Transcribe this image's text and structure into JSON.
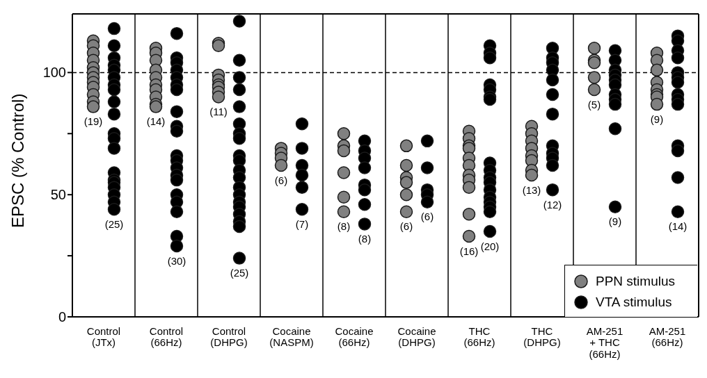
{
  "chart_data": {
    "type": "scatter",
    "ylabel": "EPSC (% Control)",
    "categories": [
      "Control\n(JTx)",
      "Control\n(66Hz)",
      "Control\n(DHPG)",
      "Cocaine\n(NASPM)",
      "Cocaine\n(66Hz)",
      "Cocaine\n(DHPG)",
      "THC\n(66Hz)",
      "THC\n(DHPG)",
      "AM-251\n+ THC\n(66Hz)",
      "AM-251\n(66Hz)"
    ],
    "ylim": [
      0,
      124
    ],
    "yticks": [
      0,
      {
        "value": 25,
        "label": null
      },
      50,
      {
        "value": 75,
        "label": null
      },
      100
    ],
    "grid": "x",
    "legend": "bottom right",
    "marker": "circle",
    "ref_lines": [
      {
        "axis": "y",
        "value": 100,
        "line_style": "dashed",
        "color": "#000000"
      }
    ],
    "series": [
      {
        "name": "PPN stimulus",
        "color": "#808080",
        "x": [
          "Control\n(JTx)",
          "Control\n(JTx)",
          "Control\n(JTx)",
          "Control\n(JTx)",
          "Control\n(JTx)",
          "Control\n(JTx)",
          "Control\n(JTx)",
          "Control\n(JTx)",
          "Control\n(JTx)",
          "Control\n(JTx)",
          "Control\n(JTx)",
          "Control\n(JTx)",
          "Control\n(66Hz)",
          "Control\n(66Hz)",
          "Control\n(66Hz)",
          "Control\n(66Hz)",
          "Control\n(66Hz)",
          "Control\n(66Hz)",
          "Control\n(66Hz)",
          "Control\n(66Hz)",
          "Control\n(66Hz)",
          "Control\n(66Hz)",
          "Control\n(DHPG)",
          "Control\n(DHPG)",
          "Control\n(DHPG)",
          "Control\n(DHPG)",
          "Control\n(DHPG)",
          "Control\n(DHPG)",
          "Control\n(DHPG)",
          "Control\n(DHPG)",
          "Cocaine\n(NASPM)",
          "Cocaine\n(NASPM)",
          "Cocaine\n(NASPM)",
          "Cocaine\n(NASPM)",
          "Cocaine\n(66Hz)",
          "Cocaine\n(66Hz)",
          "Cocaine\n(66Hz)",
          "Cocaine\n(66Hz)",
          "Cocaine\n(66Hz)",
          "Cocaine\n(66Hz)",
          "Cocaine\n(DHPG)",
          "Cocaine\n(DHPG)",
          "Cocaine\n(DHPG)",
          "Cocaine\n(DHPG)",
          "Cocaine\n(DHPG)",
          "Cocaine\n(DHPG)",
          "THC\n(66Hz)",
          "THC\n(66Hz)",
          "THC\n(66Hz)",
          "THC\n(66Hz)",
          "THC\n(66Hz)",
          "THC\n(66Hz)",
          "THC\n(66Hz)",
          "THC\n(66Hz)",
          "THC\n(66Hz)",
          "THC\n(66Hz)",
          "THC\n(66Hz)",
          "THC\n(DHPG)",
          "THC\n(DHPG)",
          "THC\n(DHPG)",
          "THC\n(DHPG)",
          "THC\n(DHPG)",
          "THC\n(DHPG)",
          "THC\n(DHPG)",
          "THC\n(DHPG)",
          "AM-251\n+ THC\n(66Hz)",
          "AM-251\n+ THC\n(66Hz)",
          "AM-251\n+ THC\n(66Hz)",
          "AM-251\n+ THC\n(66Hz)",
          "AM-251\n+ THC\n(66Hz)",
          "AM-251\n(66Hz)",
          "AM-251\n(66Hz)",
          "AM-251\n(66Hz)",
          "AM-251\n(66Hz)",
          "AM-251\n(66Hz)",
          "AM-251\n(66Hz)",
          "AM-251\n(66Hz)",
          "AM-251\n(66Hz)"
        ],
        "values": [
          113,
          111,
          108,
          105,
          102,
          100,
          98,
          96,
          94,
          91,
          88,
          86,
          110,
          108,
          105,
          101,
          98,
          95,
          93,
          90,
          87,
          86,
          112,
          111,
          99,
          97,
          95,
          94,
          92,
          90,
          69,
          67,
          65,
          62,
          75,
          70,
          68,
          59,
          49,
          43,
          70,
          62,
          57,
          55,
          50,
          43,
          76,
          73,
          70,
          69,
          65,
          62,
          58,
          56,
          53,
          42,
          33,
          78,
          75,
          72,
          69,
          66,
          64,
          60,
          58,
          110,
          105,
          104,
          98,
          93,
          108,
          105,
          101,
          96,
          93,
          91,
          90,
          87
        ]
      },
      {
        "name": "VTA stimulus",
        "color": "#000000",
        "x": [
          "Control\n(JTx)",
          "Control\n(JTx)",
          "Control\n(JTx)",
          "Control\n(JTx)",
          "Control\n(JTx)",
          "Control\n(JTx)",
          "Control\n(JTx)",
          "Control\n(JTx)",
          "Control\n(JTx)",
          "Control\n(JTx)",
          "Control\n(JTx)",
          "Control\n(JTx)",
          "Control\n(JTx)",
          "Control\n(JTx)",
          "Control\n(JTx)",
          "Control\n(JTx)",
          "Control\n(JTx)",
          "Control\n(JTx)",
          "Control\n(JTx)",
          "Control\n(JTx)",
          "Control\n(66Hz)",
          "Control\n(66Hz)",
          "Control\n(66Hz)",
          "Control\n(66Hz)",
          "Control\n(66Hz)",
          "Control\n(66Hz)",
          "Control\n(66Hz)",
          "Control\n(66Hz)",
          "Control\n(66Hz)",
          "Control\n(66Hz)",
          "Control\n(66Hz)",
          "Control\n(66Hz)",
          "Control\n(66Hz)",
          "Control\n(66Hz)",
          "Control\n(66Hz)",
          "Control\n(66Hz)",
          "Control\n(66Hz)",
          "Control\n(66Hz)",
          "Control\n(66Hz)",
          "Control\n(66Hz)",
          "Control\n(DHPG)",
          "Control\n(DHPG)",
          "Control\n(DHPG)",
          "Control\n(DHPG)",
          "Control\n(DHPG)",
          "Control\n(DHPG)",
          "Control\n(DHPG)",
          "Control\n(DHPG)",
          "Control\n(DHPG)",
          "Control\n(DHPG)",
          "Control\n(DHPG)",
          "Control\n(DHPG)",
          "Control\n(DHPG)",
          "Control\n(DHPG)",
          "Control\n(DHPG)",
          "Control\n(DHPG)",
          "Control\n(DHPG)",
          "Control\n(DHPG)",
          "Control\n(DHPG)",
          "Control\n(DHPG)",
          "Cocaine\n(NASPM)",
          "Cocaine\n(NASPM)",
          "Cocaine\n(NASPM)",
          "Cocaine\n(NASPM)",
          "Cocaine\n(NASPM)",
          "Cocaine\n(NASPM)",
          "Cocaine\n(66Hz)",
          "Cocaine\n(66Hz)",
          "Cocaine\n(66Hz)",
          "Cocaine\n(66Hz)",
          "Cocaine\n(66Hz)",
          "Cocaine\n(66Hz)",
          "Cocaine\n(66Hz)",
          "Cocaine\n(66Hz)",
          "Cocaine\n(DHPG)",
          "Cocaine\n(DHPG)",
          "Cocaine\n(DHPG)",
          "Cocaine\n(DHPG)",
          "Cocaine\n(DHPG)",
          "THC\n(66Hz)",
          "THC\n(66Hz)",
          "THC\n(66Hz)",
          "THC\n(66Hz)",
          "THC\n(66Hz)",
          "THC\n(66Hz)",
          "THC\n(66Hz)",
          "THC\n(66Hz)",
          "THC\n(66Hz)",
          "THC\n(66Hz)",
          "THC\n(66Hz)",
          "THC\n(66Hz)",
          "THC\n(66Hz)",
          "THC\n(66Hz)",
          "THC\n(66Hz)",
          "THC\n(66Hz)",
          "THC\n(66Hz)",
          "THC\n(DHPG)",
          "THC\n(DHPG)",
          "THC\n(DHPG)",
          "THC\n(DHPG)",
          "THC\n(DHPG)",
          "THC\n(DHPG)",
          "THC\n(DHPG)",
          "THC\n(DHPG)",
          "THC\n(DHPG)",
          "THC\n(DHPG)",
          "THC\n(DHPG)",
          "THC\n(DHPG)",
          "AM-251\n+ THC\n(66Hz)",
          "AM-251\n+ THC\n(66Hz)",
          "AM-251\n+ THC\n(66Hz)",
          "AM-251\n+ THC\n(66Hz)",
          "AM-251\n+ THC\n(66Hz)",
          "AM-251\n+ THC\n(66Hz)",
          "AM-251\n+ THC\n(66Hz)",
          "AM-251\n+ THC\n(66Hz)",
          "AM-251\n+ THC\n(66Hz)",
          "AM-251\n+ THC\n(66Hz)",
          "AM-251\n+ THC\n(66Hz)",
          "AM-251\n(66Hz)",
          "AM-251\n(66Hz)",
          "AM-251\n(66Hz)",
          "AM-251\n(66Hz)",
          "AM-251\n(66Hz)",
          "AM-251\n(66Hz)",
          "AM-251\n(66Hz)",
          "AM-251\n(66Hz)",
          "AM-251\n(66Hz)",
          "AM-251\n(66Hz)",
          "AM-251\n(66Hz)",
          "AM-251\n(66Hz)",
          "AM-251\n(66Hz)",
          "AM-251\n(66Hz)"
        ],
        "values": [
          118,
          111,
          106,
          103,
          101,
          98,
          95,
          93,
          88,
          83,
          75,
          73,
          69,
          59,
          56,
          55,
          53,
          50,
          47,
          44,
          116,
          106,
          104,
          101,
          98,
          95,
          93,
          84,
          78,
          76,
          66,
          64,
          61,
          58,
          56,
          50,
          47,
          43,
          33,
          29,
          121,
          105,
          98,
          93,
          86,
          79,
          75,
          73,
          66,
          64,
          60,
          57,
          53,
          50,
          47,
          45,
          42,
          39,
          37,
          24,
          79,
          69,
          62,
          58,
          53,
          44,
          72,
          68,
          65,
          61,
          54,
          52,
          46,
          38,
          72,
          61,
          52,
          50,
          47,
          111,
          108,
          106,
          95,
          93,
          90,
          89,
          63,
          60,
          57,
          55,
          52,
          49,
          47,
          45,
          43,
          35,
          110,
          106,
          104,
          101,
          97,
          91,
          83,
          70,
          67,
          65,
          62,
          52,
          109,
          105,
          101,
          99,
          97,
          95,
          91,
          89,
          87,
          77,
          45,
          115,
          113,
          109,
          106,
          100,
          98,
          96,
          91,
          89,
          87,
          70,
          68,
          57,
          43
        ]
      }
    ],
    "annotations": [
      "(19)",
      "(25)",
      "(14)",
      "(30)",
      "(11)",
      "(25)",
      "(6)",
      "(7)",
      "(8)",
      "(8)",
      "(6)",
      "(6)",
      "(16)",
      "(20)",
      "(13)",
      "(12)",
      "(5)",
      "(9)",
      "(9)",
      "(14)"
    ]
  }
}
